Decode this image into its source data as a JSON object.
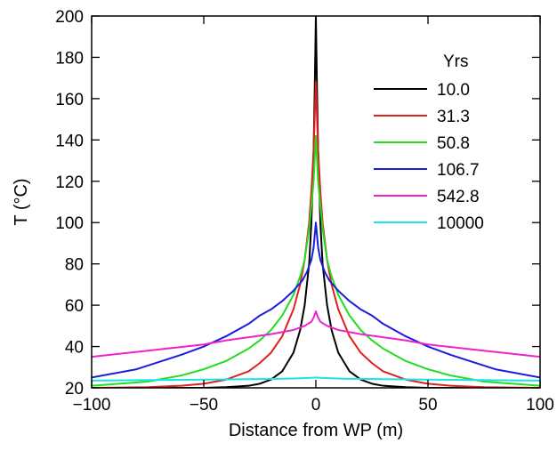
{
  "chart_data": {
    "type": "line",
    "xlabel": "Distance from WP (m)",
    "ylabel": "T (°C)",
    "xlim": [
      -100,
      100
    ],
    "ylim": [
      20,
      200
    ],
    "xticks": [
      -100,
      -50,
      0,
      50,
      100
    ],
    "xtick_labels": [
      "−100",
      "−50",
      "0",
      "50",
      "100"
    ],
    "yticks": [
      20,
      40,
      60,
      80,
      100,
      120,
      140,
      160,
      180,
      200
    ],
    "grid": false,
    "legend": {
      "title": "Yrs",
      "position": "top-right"
    },
    "series": [
      {
        "name": "10.0",
        "color": "#000000",
        "x": [
          -100,
          -50,
          -40,
          -30,
          -25,
          -20,
          -15,
          -10,
          -7,
          -5,
          -3,
          -2,
          -1,
          -0.5,
          0,
          0.5,
          1,
          2,
          3,
          5,
          7,
          10,
          15,
          20,
          25,
          30,
          40,
          50,
          100
        ],
        "y": [
          20,
          20,
          20.3,
          21,
          22,
          24,
          28,
          37,
          48,
          60,
          80,
          100,
          135,
          165,
          200,
          165,
          135,
          100,
          80,
          60,
          48,
          37,
          28,
          24,
          22,
          21,
          20.3,
          20,
          20
        ]
      },
      {
        "name": "31.3",
        "color": "#e0201c",
        "x": [
          -100,
          -75,
          -60,
          -50,
          -40,
          -30,
          -25,
          -20,
          -15,
          -10,
          -7,
          -5,
          -3,
          -2,
          -1,
          0,
          1,
          2,
          3,
          5,
          7,
          10,
          15,
          20,
          25,
          30,
          40,
          50,
          60,
          75,
          100
        ],
        "y": [
          20,
          20.3,
          21,
          22,
          24,
          28,
          32,
          37,
          45,
          58,
          70,
          82,
          100,
          115,
          135,
          168,
          135,
          115,
          100,
          82,
          70,
          58,
          45,
          37,
          32,
          28,
          24,
          22,
          21,
          20.3,
          20
        ]
      },
      {
        "name": "50.8",
        "color": "#22dd22",
        "x": [
          -100,
          -75,
          -60,
          -50,
          -40,
          -30,
          -25,
          -20,
          -15,
          -10,
          -7,
          -5,
          -3,
          -2,
          -1,
          0,
          1,
          2,
          3,
          5,
          7,
          10,
          15,
          20,
          25,
          30,
          40,
          50,
          60,
          75,
          100
        ],
        "y": [
          21,
          23,
          26,
          29,
          33,
          39,
          43,
          48,
          55,
          65,
          74,
          82,
          97,
          108,
          120,
          142,
          120,
          108,
          97,
          82,
          74,
          65,
          55,
          48,
          43,
          39,
          33,
          29,
          26,
          23,
          21
        ]
      },
      {
        "name": "106.7",
        "color": "#1c1cdc",
        "x": [
          -100,
          -80,
          -60,
          -50,
          -40,
          -30,
          -25,
          -20,
          -15,
          -10,
          -6,
          -4,
          -2,
          -1,
          0,
          1,
          2,
          4,
          6,
          10,
          15,
          20,
          25,
          30,
          40,
          50,
          60,
          80,
          100
        ],
        "y": [
          25,
          29,
          36,
          40,
          45,
          51,
          55,
          58,
          62,
          67,
          72,
          76,
          82,
          88,
          100,
          88,
          82,
          76,
          72,
          67,
          62,
          58,
          55,
          51,
          45,
          40,
          36,
          29,
          25
        ]
      },
      {
        "name": "542.8",
        "color": "#ee22cc",
        "x": [
          -100,
          -75,
          -50,
          -40,
          -30,
          -20,
          -10,
          -5,
          -2,
          -1,
          0,
          1,
          2,
          5,
          10,
          20,
          30,
          40,
          50,
          75,
          100
        ],
        "y": [
          35,
          38,
          41,
          43,
          44.5,
          46,
          48,
          50,
          52,
          54,
          57,
          54,
          52,
          50,
          48,
          46,
          44.5,
          43,
          41,
          38,
          35
        ]
      },
      {
        "name": "10000",
        "color": "#18e4e4",
        "x": [
          -100,
          -50,
          -20,
          -10,
          -3,
          0,
          3,
          10,
          20,
          50,
          100
        ],
        "y": [
          23.5,
          24,
          24.3,
          24.5,
          24.8,
          25,
          24.8,
          24.5,
          24.3,
          24,
          23.5
        ]
      }
    ]
  }
}
